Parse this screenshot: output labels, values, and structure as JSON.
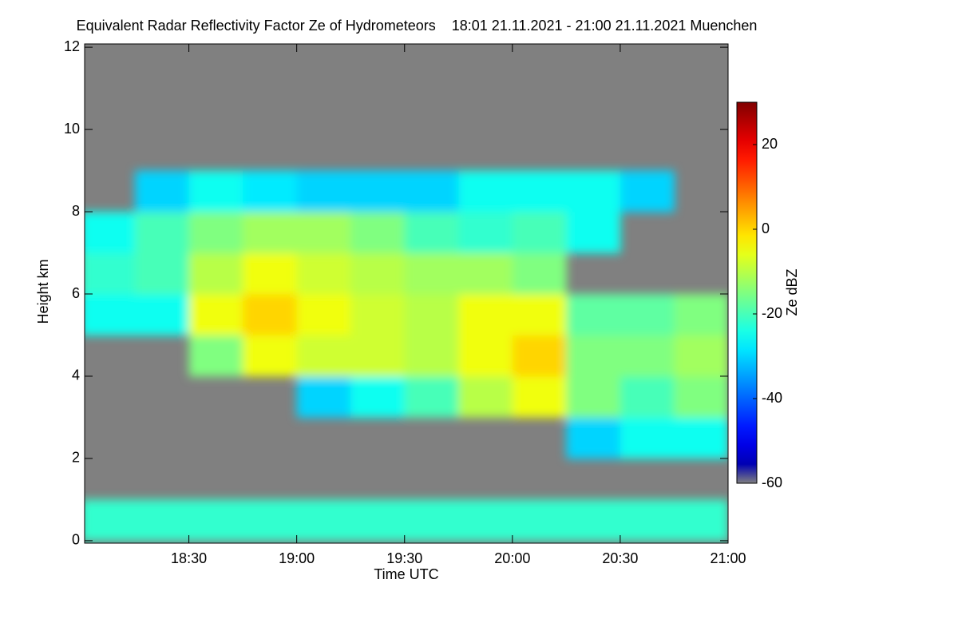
{
  "chart_data": {
    "type": "heatmap",
    "title": "Equivalent Radar Reflectivity Factor Ze of Hydrometeors    18:01 21.11.2021 - 21:00 21.11.2021 Muenchen",
    "x_label": "Time UTC",
    "y_label": "Height km",
    "colorbar_label": "Ze dBZ",
    "xbins": [
      18.0,
      18.25,
      18.5,
      18.75,
      19.0,
      19.25,
      19.5,
      19.75,
      20.0,
      20.25,
      20.5,
      20.75,
      21.0
    ],
    "ybins": [
      0,
      1,
      2,
      3,
      4,
      5,
      6,
      7,
      8,
      9,
      10,
      11,
      12
    ],
    "z": [
      [
        -22,
        -22,
        -22,
        -22,
        -22,
        -22,
        -22,
        -22,
        -22,
        -22,
        -22,
        -22
      ],
      [
        null,
        null,
        null,
        null,
        null,
        null,
        null,
        null,
        null,
        null,
        null,
        null
      ],
      [
        null,
        null,
        null,
        null,
        null,
        null,
        null,
        null,
        null,
        -30,
        -25,
        -25
      ],
      [
        null,
        null,
        null,
        null,
        -30,
        -25,
        -20,
        -10,
        -5,
        -15,
        -20,
        -15
      ],
      [
        null,
        null,
        -15,
        -5,
        -8,
        -8,
        -10,
        -5,
        0,
        -15,
        -15,
        -12
      ],
      [
        -25,
        -25,
        -5,
        0,
        -5,
        -8,
        -10,
        -5,
        -5,
        -18,
        -18,
        -15
      ],
      [
        -22,
        -20,
        -10,
        -5,
        -8,
        -10,
        -12,
        -12,
        -15,
        null,
        null,
        null
      ],
      [
        -25,
        -20,
        -15,
        -12,
        -12,
        -15,
        -20,
        -22,
        -20,
        -25,
        null,
        null
      ],
      [
        null,
        -30,
        -25,
        -28,
        -30,
        -30,
        -30,
        -25,
        -25,
        -25,
        -30,
        null
      ],
      [
        null,
        null,
        null,
        null,
        null,
        null,
        null,
        null,
        null,
        null,
        null,
        null
      ],
      [
        null,
        null,
        null,
        null,
        null,
        null,
        null,
        null,
        null,
        null,
        null,
        null
      ],
      [
        null,
        null,
        null,
        null,
        null,
        null,
        null,
        null,
        null,
        null,
        null,
        null
      ]
    ],
    "xlim": [
      18.0167,
      21.0
    ],
    "xticks": [
      {
        "value": 18.5,
        "label": "18:30"
      },
      {
        "value": 19.0,
        "label": "19:00"
      },
      {
        "value": 19.5,
        "label": "19:30"
      },
      {
        "value": 20.0,
        "label": "20:00"
      },
      {
        "value": 20.5,
        "label": "20:30"
      },
      {
        "value": 21.0,
        "label": "21:00"
      }
    ],
    "ylim": [
      -0.06,
      12.08
    ],
    "yticks": [
      0,
      2,
      4,
      6,
      8,
      10,
      12
    ],
    "zlim": [
      -60,
      30
    ],
    "colorbar_ticks": [
      -60,
      -40,
      -20,
      0,
      20
    ],
    "colormap": "jet",
    "missing_color": "#808080"
  }
}
